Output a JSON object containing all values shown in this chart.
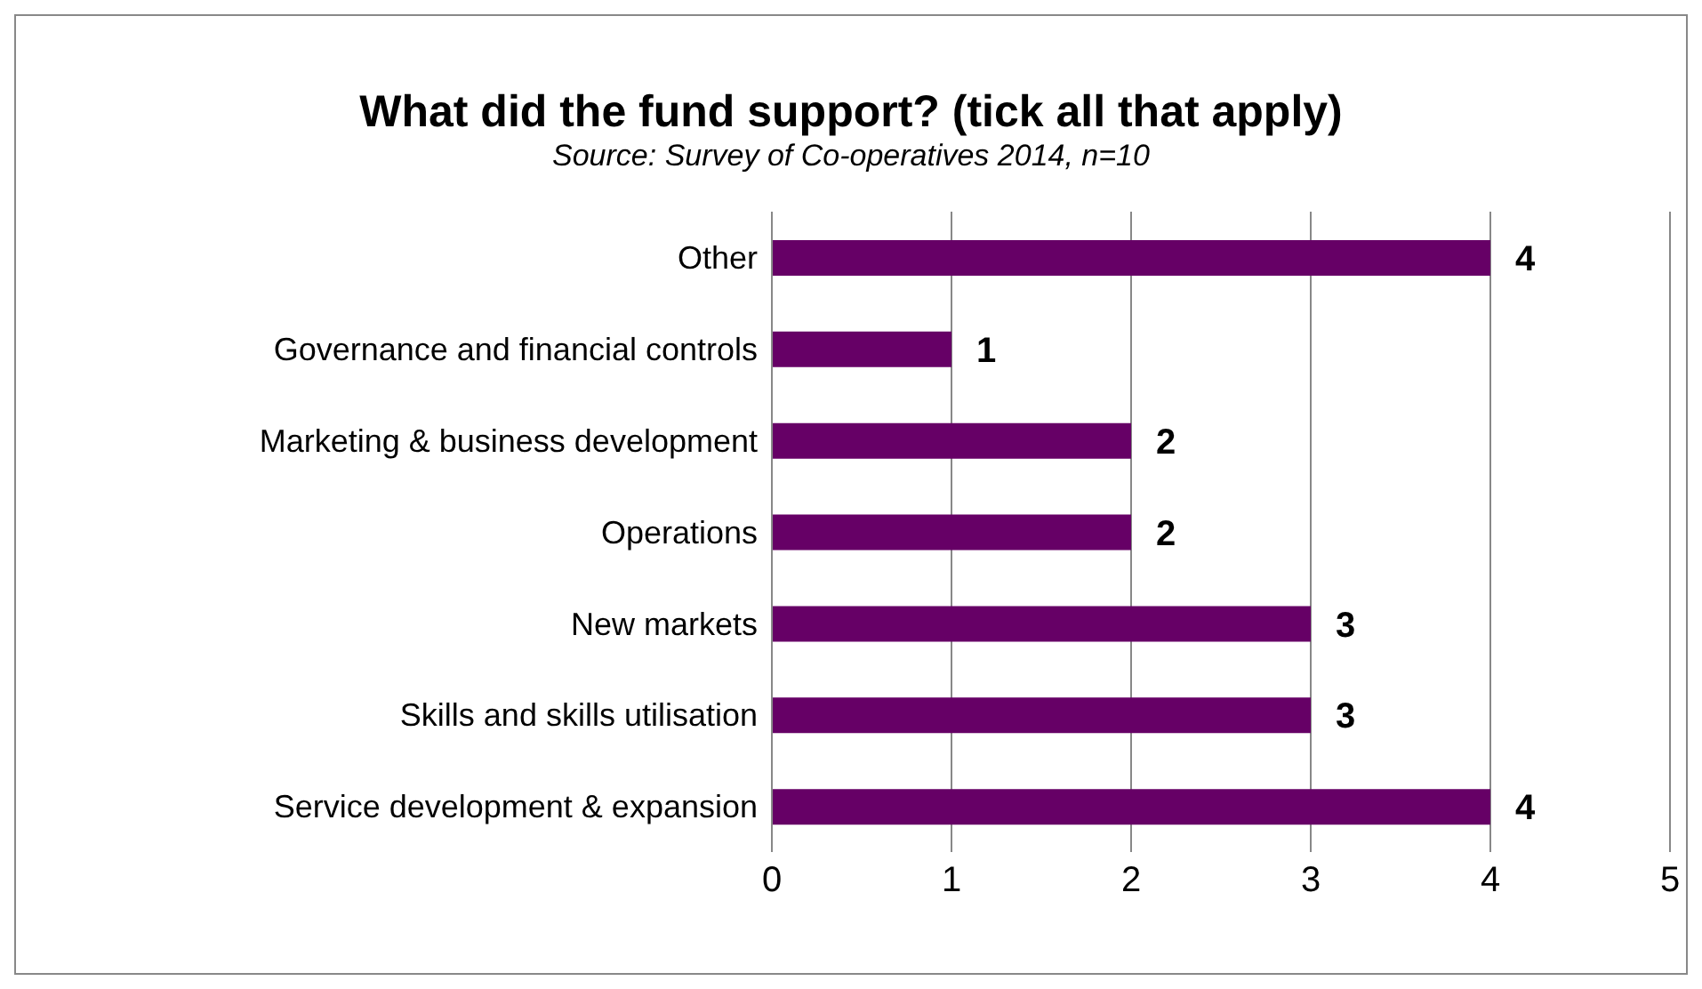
{
  "chart_data": {
    "type": "bar",
    "orientation": "horizontal",
    "title": "What did the fund support? (tick all that apply)",
    "subtitle": "Source: Survey of Co-operatives 2014, n=10",
    "categories": [
      "Other",
      "Governance and financial controls",
      "Marketing & business development",
      "Operations",
      "New markets",
      "Skills and skills utilisation",
      "Service development & expansion"
    ],
    "values": [
      4,
      1,
      2,
      2,
      3,
      3,
      4
    ],
    "color": "#660066",
    "data_labels": true,
    "xlim": [
      0,
      5
    ],
    "xticks": [
      0,
      1,
      2,
      3,
      4,
      5
    ],
    "grid": "x",
    "legend": false
  }
}
